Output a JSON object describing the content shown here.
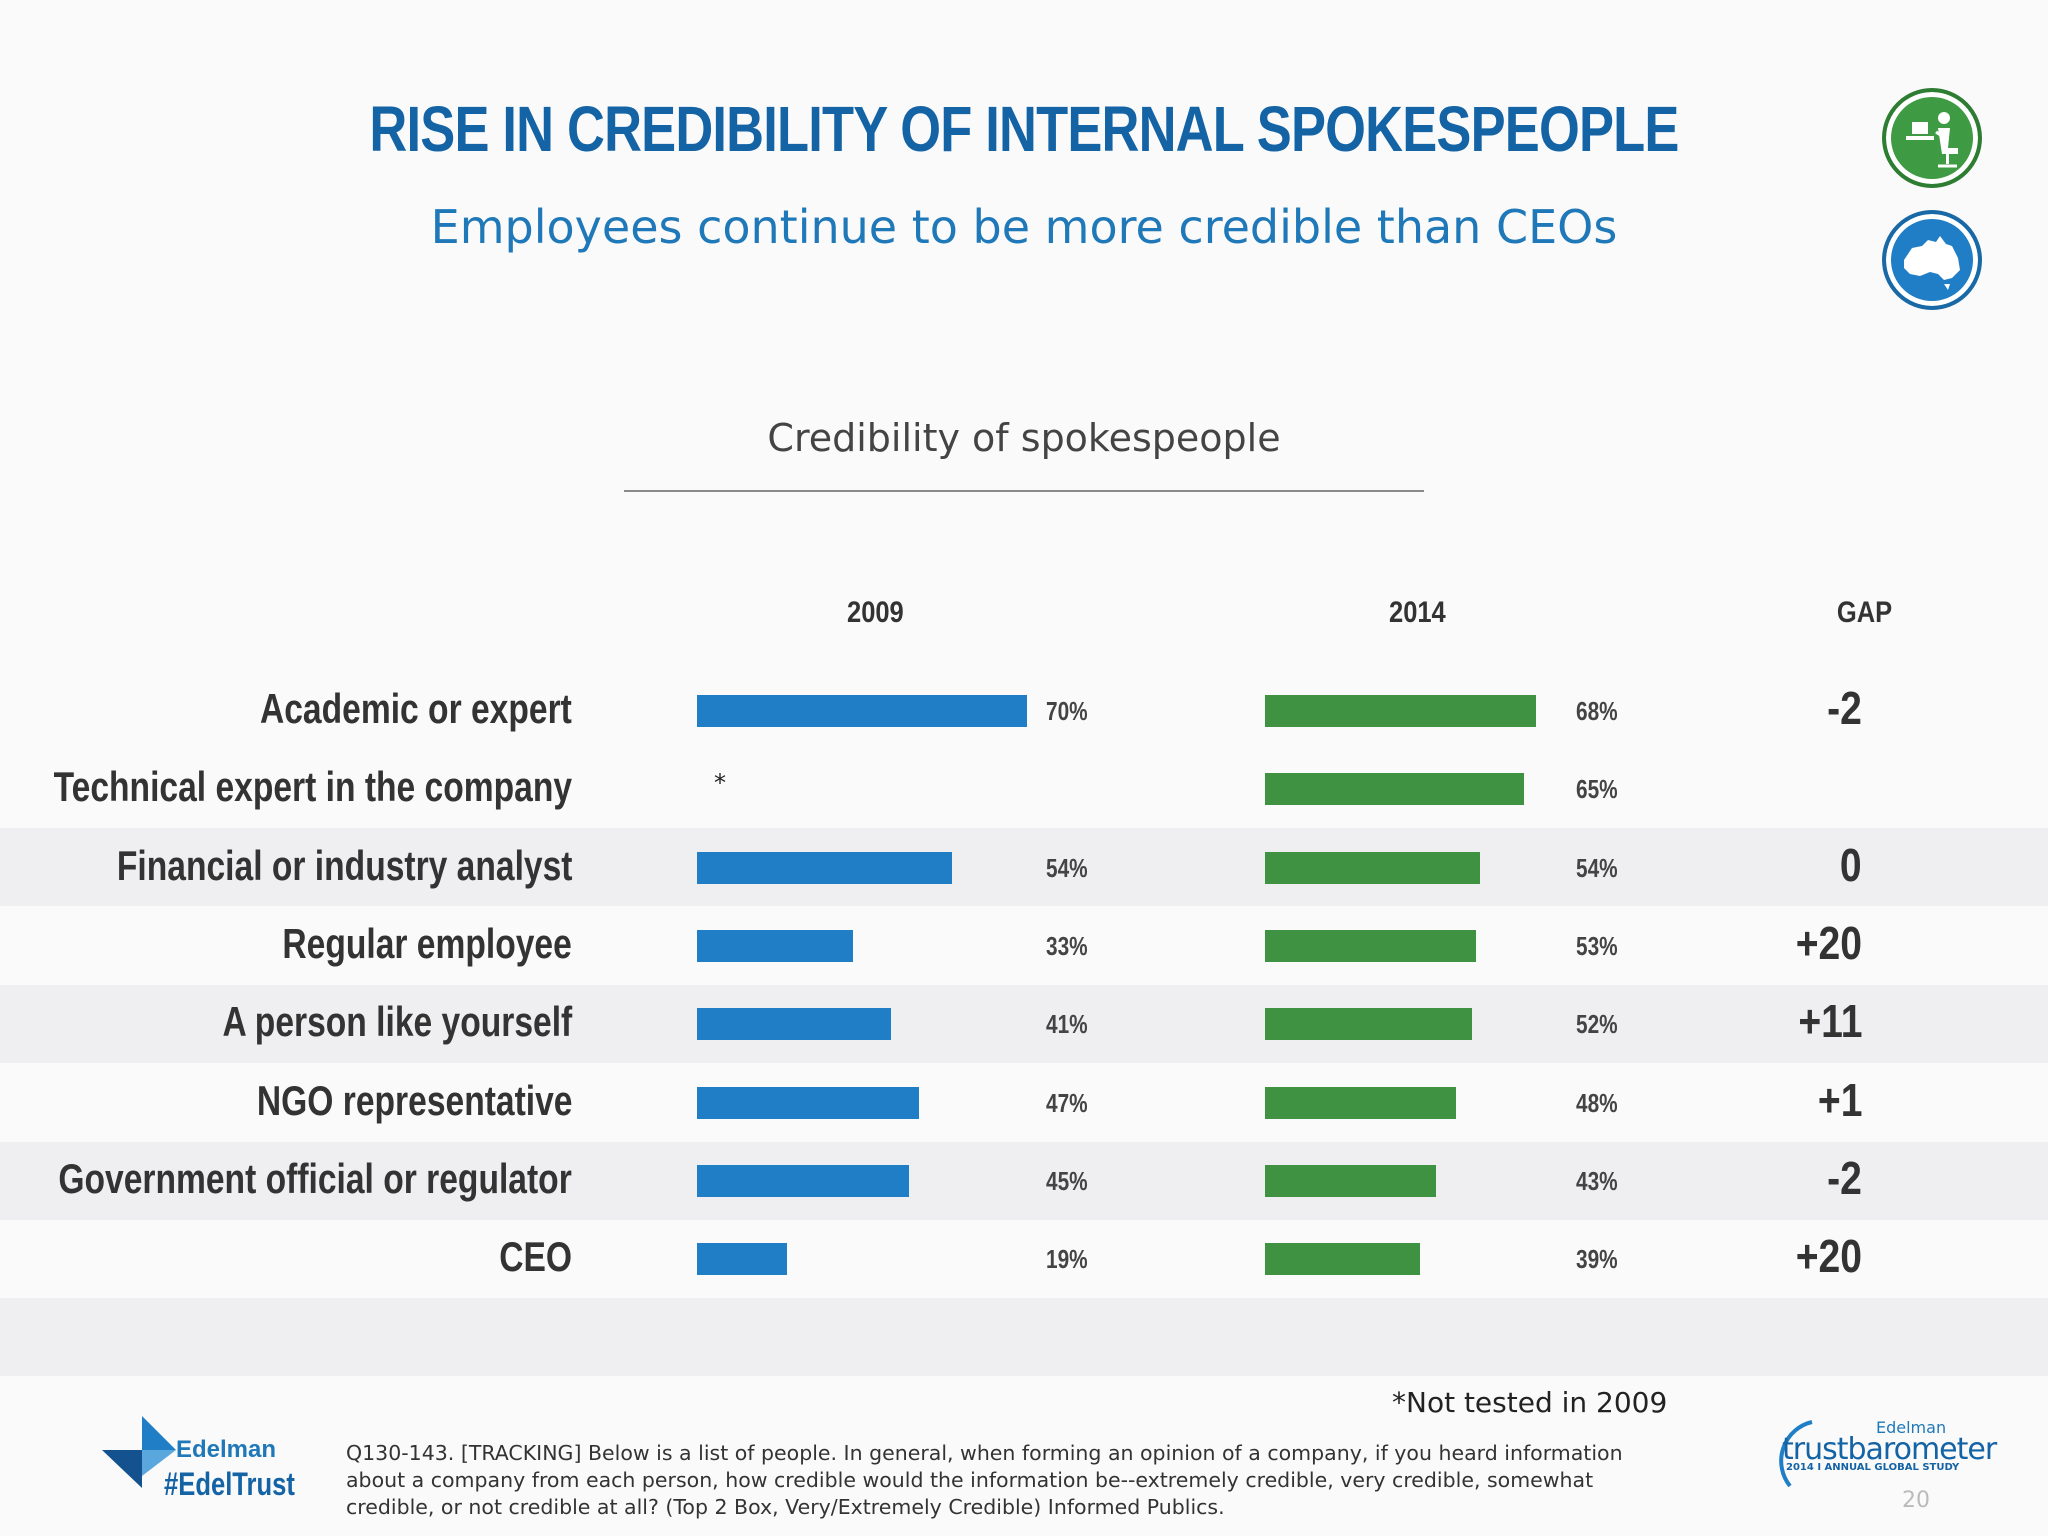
{
  "title": "RISE IN CREDIBILITY OF INTERNAL SPOKESPEOPLE",
  "subtitle": "Employees continue to be more credible than CEOs",
  "icons": [
    "person-at-desk-icon",
    "australia-map-icon"
  ],
  "colors": {
    "bar_2009": "#1f7ec6",
    "bar_2014": "#3e9242",
    "title": "#1463a5"
  },
  "chart_data": {
    "type": "bar",
    "orientation": "horizontal",
    "title": "Credibility of spokespeople",
    "column_headers": {
      "y2009": "2009",
      "y2014": "2014",
      "gap": "GAP"
    },
    "categories": [
      "Academic or expert",
      "Technical expert in the company",
      "Financial or industry analyst",
      "Regular employee",
      "A person like yourself",
      "NGO representative",
      "Government official or regulator",
      "CEO"
    ],
    "series": [
      {
        "name": "2009",
        "values": [
          70,
          null,
          54,
          33,
          41,
          47,
          45,
          19
        ],
        "labels": [
          "70%",
          "*",
          "54%",
          "33%",
          "41%",
          "47%",
          "45%",
          "19%"
        ]
      },
      {
        "name": "2014",
        "values": [
          68,
          65,
          54,
          53,
          52,
          48,
          43,
          39
        ],
        "labels": [
          "68%",
          "65%",
          "54%",
          "53%",
          "52%",
          "48%",
          "43%",
          "39%"
        ]
      }
    ],
    "gap": [
      "-2",
      "",
      "0",
      "+20",
      "+11",
      "+1",
      "-2",
      "+20"
    ],
    "unit": "%",
    "grid": false,
    "legend": "none"
  },
  "footer": {
    "note": "*Not tested in 2009",
    "question": "Q130-143. [TRACKING] Below is a list of people. In general, when forming an opinion of a company, if you heard information about a company from each person, how credible would the information be--extremely credible, very credible, somewhat credible, or not credible at all? (Top 2 Box, Very/Extremely Credible) Informed Publics.",
    "brand_name": "Edelman",
    "hashtag": "#EdelTrust",
    "tb_brand": "Edelman",
    "tb_name": "trustbarometer",
    "tb_study": "2014 I ANNUAL GLOBAL STUDY",
    "page_number": "20"
  }
}
